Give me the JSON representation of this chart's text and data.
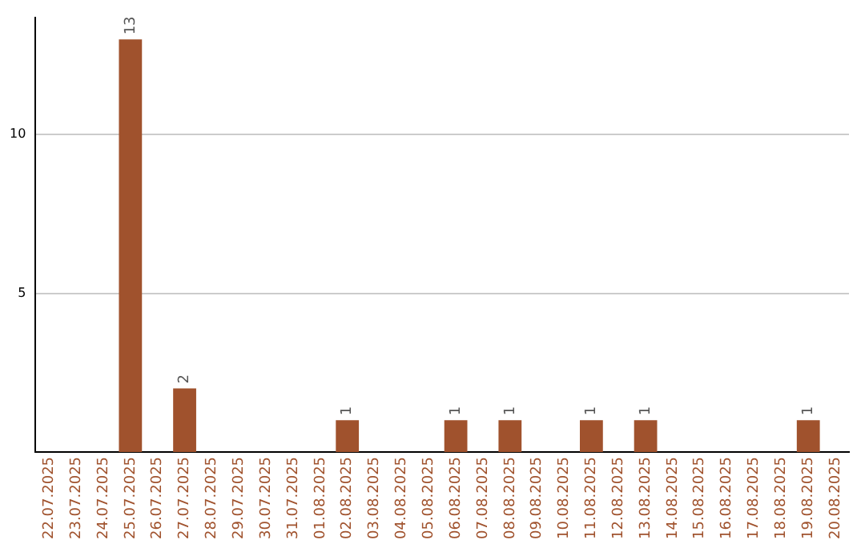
{
  "chart_data": {
    "type": "bar",
    "categories": [
      "22.07.2025",
      "23.07.2025",
      "24.07.2025",
      "25.07.2025",
      "26.07.2025",
      "27.07.2025",
      "28.07.2025",
      "29.07.2025",
      "30.07.2025",
      "31.07.2025",
      "01.08.2025",
      "02.08.2025",
      "03.08.2025",
      "04.08.2025",
      "05.08.2025",
      "06.08.2025",
      "07.08.2025",
      "08.08.2025",
      "09.08.2025",
      "10.08.2025",
      "11.08.2025",
      "12.08.2025",
      "13.08.2025",
      "14.08.2025",
      "15.08.2025",
      "16.08.2025",
      "17.08.2025",
      "18.08.2025",
      "19.08.2025",
      "20.08.2025"
    ],
    "values": [
      0,
      0,
      0,
      13,
      0,
      2,
      0,
      0,
      0,
      0,
      0,
      1,
      0,
      0,
      0,
      1,
      0,
      1,
      0,
      0,
      1,
      0,
      1,
      0,
      0,
      0,
      0,
      0,
      1,
      0
    ],
    "value_labels": [
      null,
      null,
      null,
      "13",
      null,
      "2",
      null,
      null,
      null,
      null,
      null,
      "1",
      null,
      null,
      null,
      "1",
      null,
      "1",
      null,
      null,
      "1",
      null,
      "1",
      null,
      null,
      null,
      null,
      null,
      "1",
      null
    ],
    "color": "#a0522d",
    "ylim": [
      0,
      13.7
    ],
    "yticks": [
      5,
      10
    ],
    "grid": "y"
  }
}
